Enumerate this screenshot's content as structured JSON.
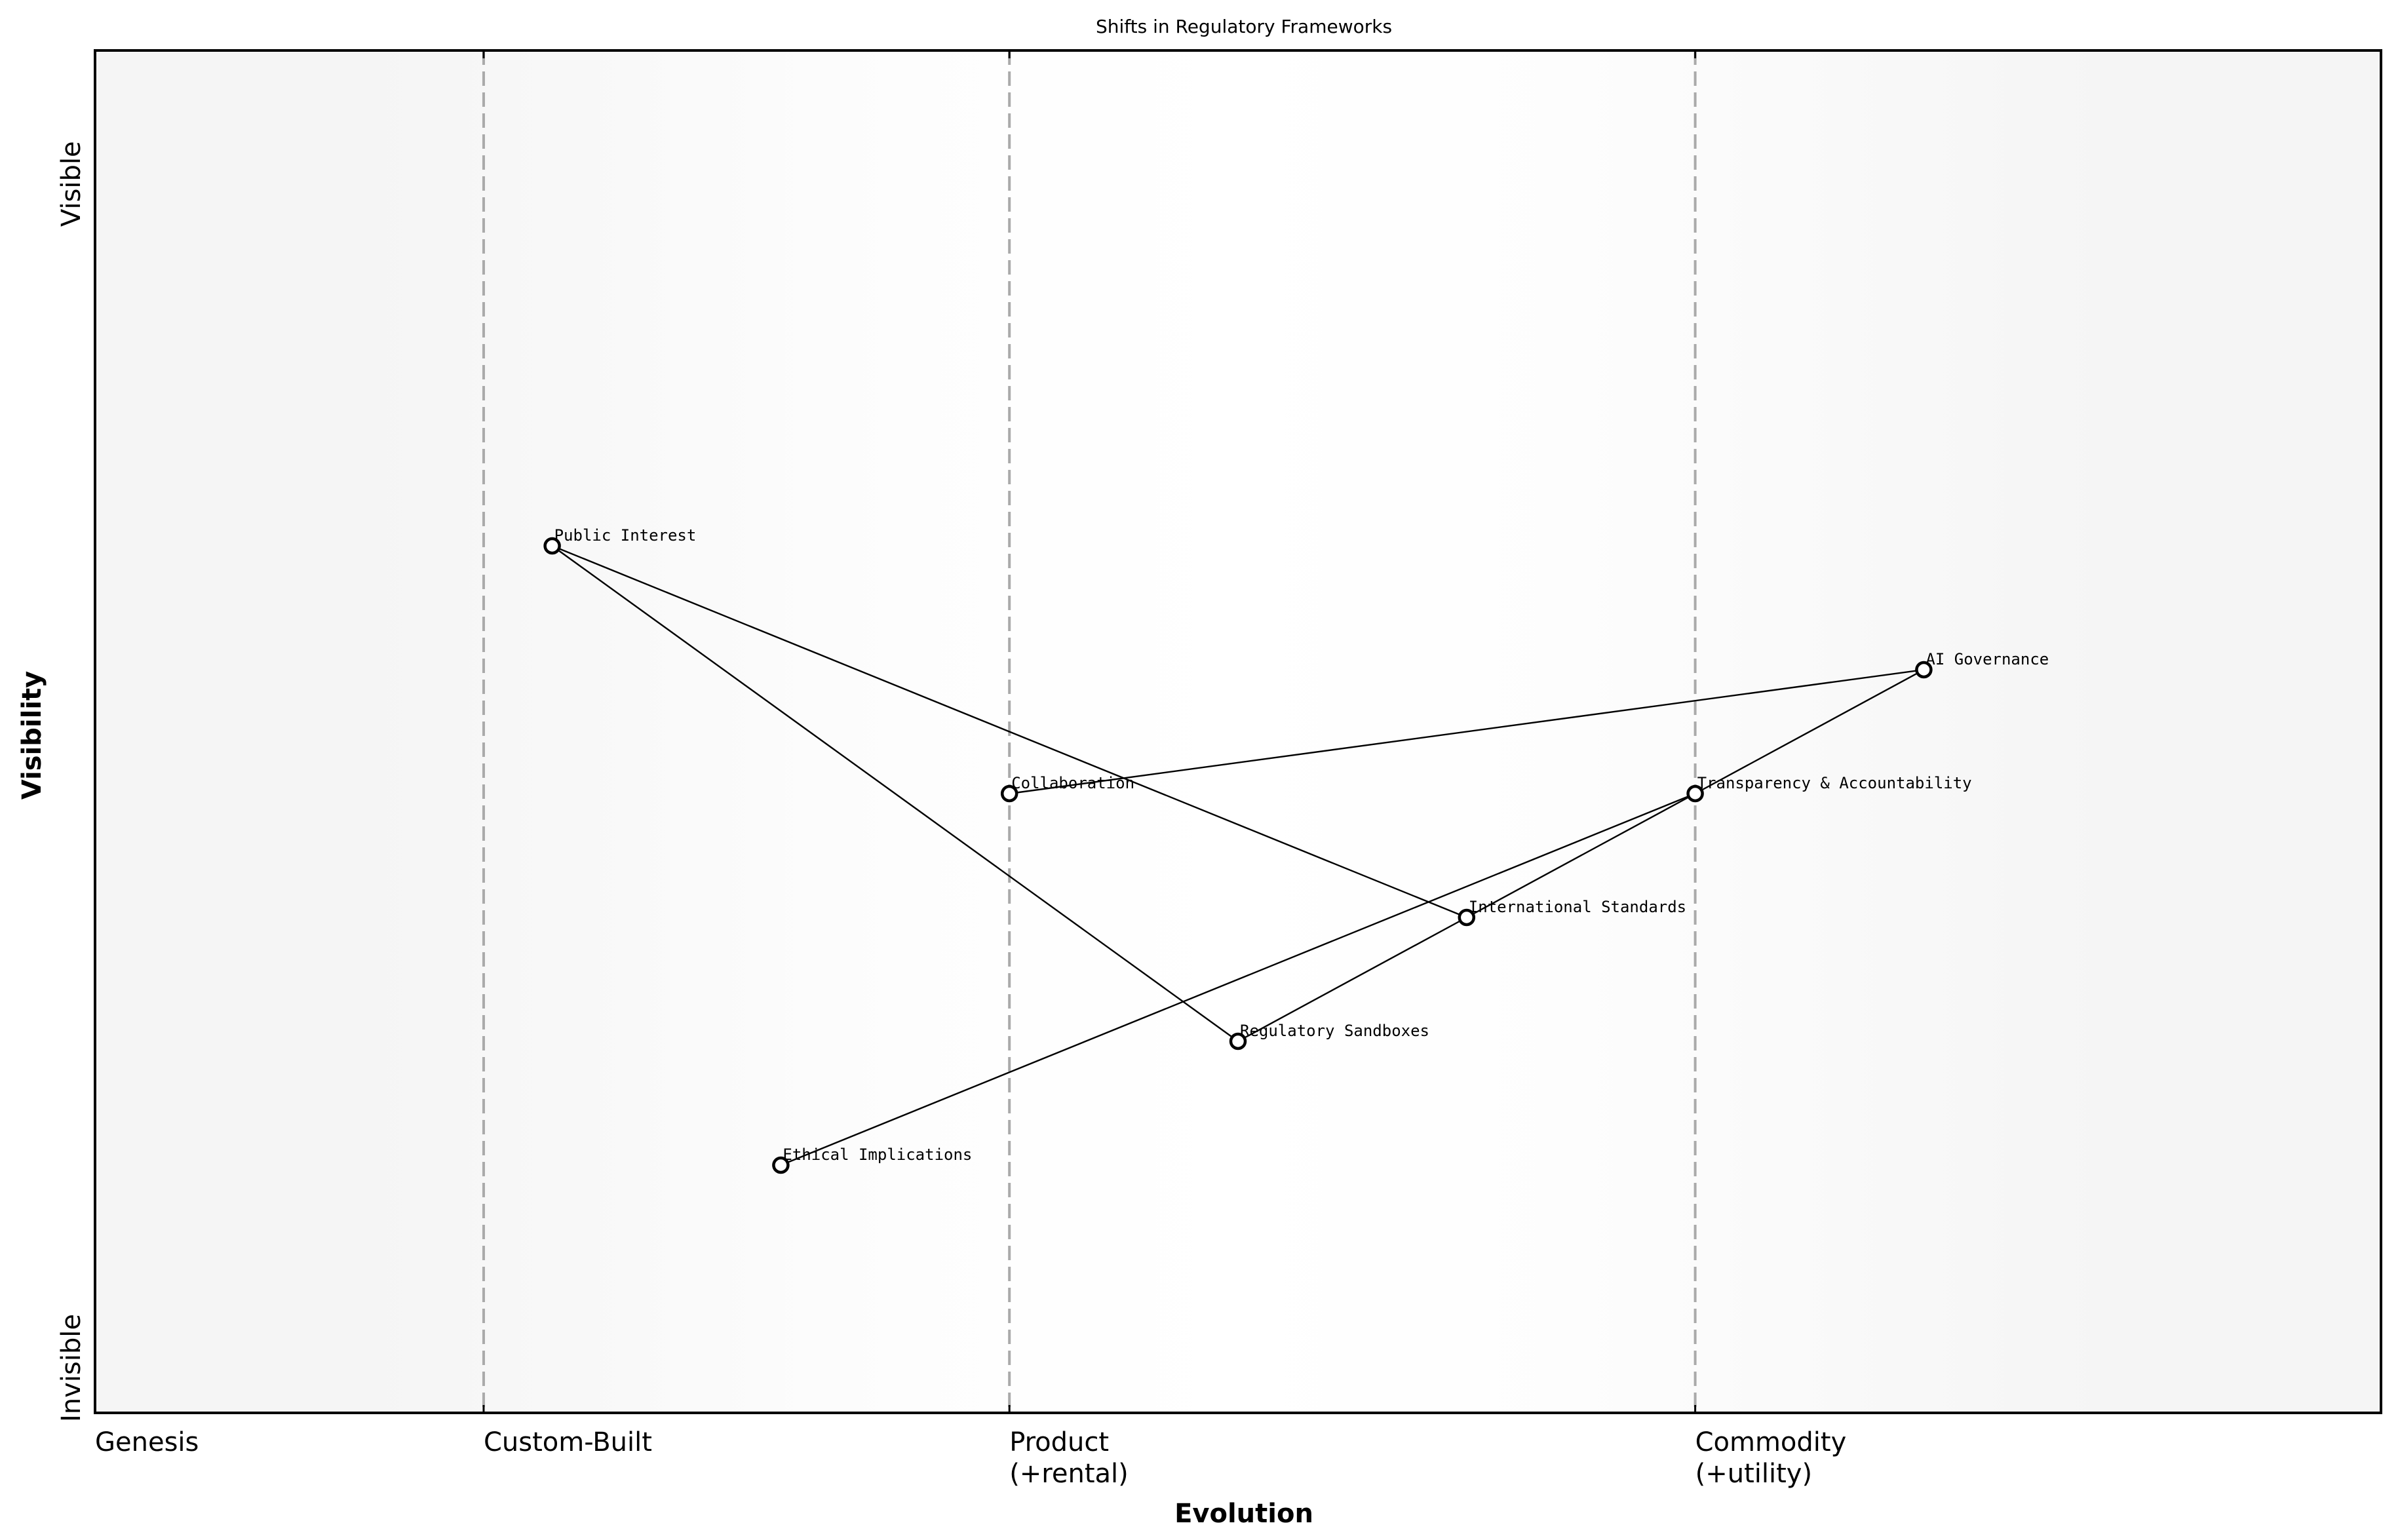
{
  "chart_data": {
    "type": "scatter",
    "subtype": "wardley-map",
    "title": "Shifts in Regulatory Frameworks",
    "xlabel": "Evolution",
    "ylabel": "Visibility",
    "xlim": [
      0,
      1
    ],
    "ylim": [
      0,
      1.1
    ],
    "grid": false,
    "y_axis_labels": {
      "top": "Visible",
      "bottom": "Invisible"
    },
    "x_stages": [
      {
        "label": "Genesis",
        "x": 0.0,
        "line": false
      },
      {
        "label": "Custom-Built",
        "x": 0.17,
        "line": true
      },
      {
        "label": "Product\n(+rental)",
        "line1": "Product",
        "line2": "(+rental)",
        "x": 0.4,
        "line": true
      },
      {
        "label": "Commodity\n(+utility)",
        "line1": "Commodity",
        "line2": "(+utility)",
        "x": 0.7,
        "line": true
      }
    ],
    "nodes": [
      {
        "id": "public_interest",
        "label": "Public Interest",
        "x": 0.2,
        "y": 0.7
      },
      {
        "id": "ai_governance",
        "label": "AI Governance",
        "x": 0.8,
        "y": 0.6
      },
      {
        "id": "collaboration",
        "label": "Collaboration",
        "x": 0.4,
        "y": 0.5
      },
      {
        "id": "transparency",
        "label": "Transparency & Accountability",
        "x": 0.7,
        "y": 0.5
      },
      {
        "id": "international_standards",
        "label": "International Standards",
        "x": 0.6,
        "y": 0.4
      },
      {
        "id": "regulatory_sandboxes",
        "label": "Regulatory Sandboxes",
        "x": 0.5,
        "y": 0.3
      },
      {
        "id": "ethical_implications",
        "label": "Ethical Implications",
        "x": 0.3,
        "y": 0.2
      }
    ],
    "edges": [
      [
        "public_interest",
        "regulatory_sandboxes"
      ],
      [
        "public_interest",
        "international_standards"
      ],
      [
        "regulatory_sandboxes",
        "international_standards"
      ],
      [
        "international_standards",
        "transparency"
      ],
      [
        "ethical_implications",
        "transparency"
      ],
      [
        "transparency",
        "ai_governance"
      ],
      [
        "collaboration",
        "ai_governance"
      ]
    ],
    "colors": {
      "background_edge": "#f5f5f5",
      "background_center": "#ffffff",
      "stage_line": "#aaaaaa",
      "node_fill": "#ffffff",
      "node_stroke": "#000000",
      "edge": "#000000"
    }
  }
}
